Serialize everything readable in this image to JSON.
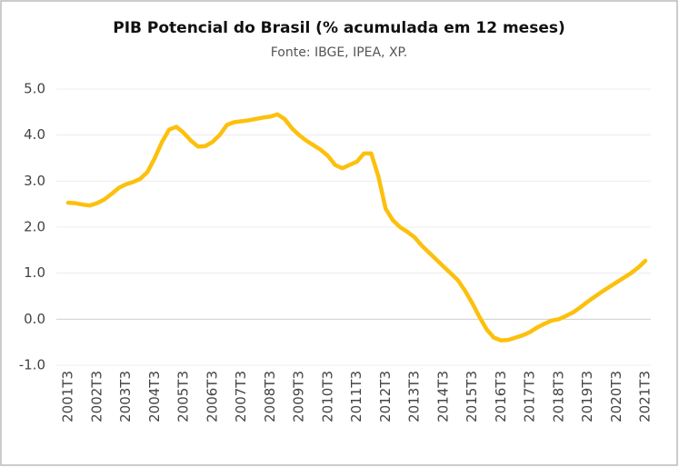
{
  "chart_data": {
    "type": "line",
    "title": "PIB Potencial do Brasil (% acumulada em 12 meses)",
    "subtitle": "Fonte: IBGE, IPEA, XP.",
    "categories": [
      "2001T3",
      null,
      null,
      null,
      "2002T3",
      null,
      null,
      null,
      "2003T3",
      null,
      null,
      null,
      "2004T3",
      null,
      null,
      null,
      "2005T3",
      null,
      null,
      null,
      "2006T3",
      null,
      null,
      null,
      "2007T3",
      null,
      null,
      null,
      "2008T3",
      null,
      null,
      null,
      "2009T3",
      null,
      null,
      null,
      "2010T3",
      null,
      null,
      null,
      "2011T3",
      null,
      null,
      null,
      "2012T3",
      null,
      null,
      null,
      "2013T3",
      null,
      null,
      null,
      "2014T3",
      null,
      null,
      null,
      "2015T3",
      null,
      null,
      null,
      "2016T3",
      null,
      null,
      null,
      "2017T3",
      null,
      null,
      null,
      "2018T3",
      null,
      null,
      null,
      "2019T3",
      null,
      null,
      null,
      "2020T3",
      null,
      null,
      null,
      "2021T3"
    ],
    "series": [
      {
        "name": "PIB Potencial",
        "color": "#fcc00d",
        "values": [
          2.53,
          2.52,
          2.49,
          2.47,
          2.52,
          2.6,
          2.72,
          2.85,
          2.93,
          2.98,
          3.05,
          3.2,
          3.5,
          3.85,
          4.12,
          4.18,
          4.05,
          3.88,
          3.75,
          3.76,
          3.85,
          4.0,
          4.22,
          4.28,
          4.3,
          4.32,
          4.35,
          4.38,
          4.4,
          4.45,
          4.35,
          4.15,
          4.0,
          3.88,
          3.78,
          3.68,
          3.55,
          3.35,
          3.28,
          3.35,
          3.42,
          3.6,
          3.6,
          3.1,
          2.4,
          2.15,
          2.0,
          1.9,
          1.78,
          1.6,
          1.45,
          1.3,
          1.15,
          1.0,
          0.85,
          0.62,
          0.35,
          0.05,
          -0.22,
          -0.4,
          -0.46,
          -0.45,
          -0.4,
          -0.35,
          -0.28,
          -0.18,
          -0.1,
          -0.03,
          0.0,
          0.07,
          0.15,
          0.26,
          0.38,
          0.49,
          0.6,
          0.7,
          0.8,
          0.9,
          1.0,
          1.12,
          1.27
        ]
      }
    ],
    "ylim": [
      -1,
      5
    ],
    "yticks": [
      {
        "value": -1,
        "label": "-1.0"
      },
      {
        "value": 0,
        "label": "0.0"
      },
      {
        "value": 1,
        "label": "1.0"
      },
      {
        "value": 2,
        "label": "2.0"
      },
      {
        "value": 3,
        "label": "3.0"
      },
      {
        "value": 4,
        "label": "4.0"
      },
      {
        "value": 5,
        "label": "5.0"
      }
    ],
    "grid": true
  }
}
